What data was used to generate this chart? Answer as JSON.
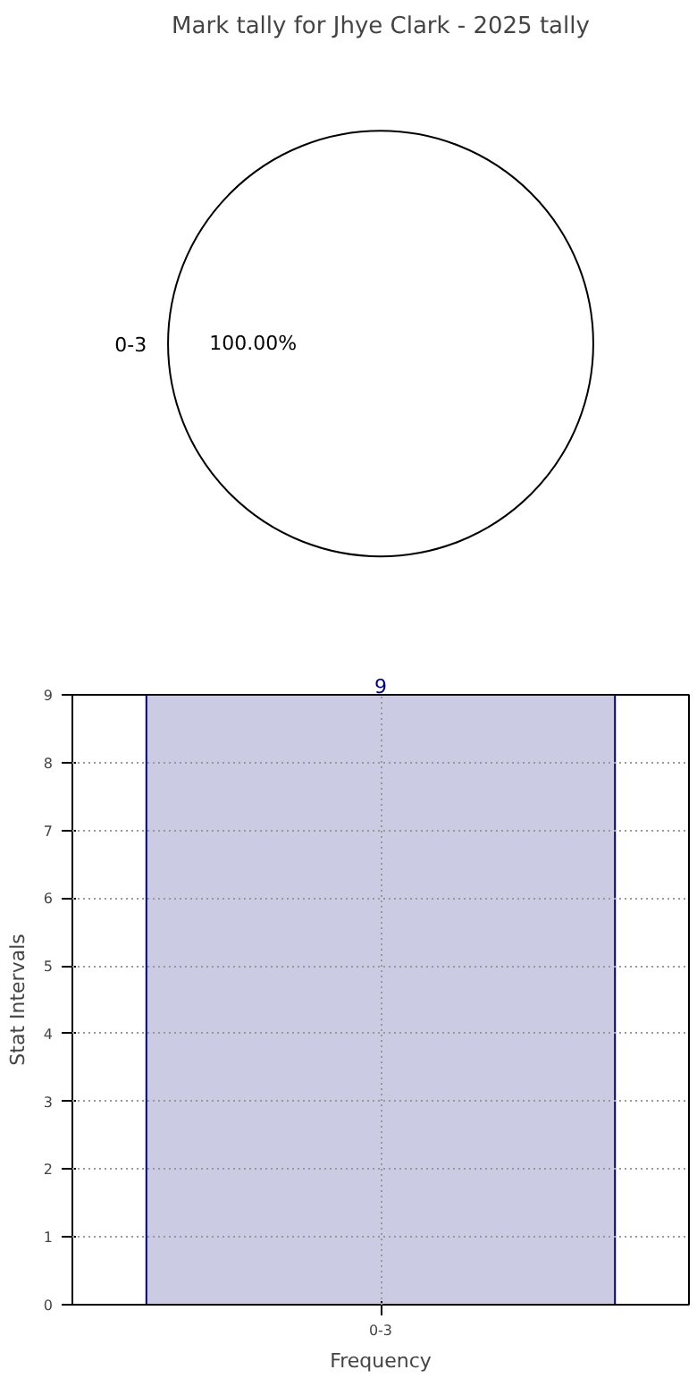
{
  "chart_data": [
    {
      "type": "pie",
      "title": "Mark tally for Jhye Clark - 2025 tally",
      "categories": [
        "0-3"
      ],
      "values": [
        100
      ],
      "colors": [
        "#ffffff"
      ],
      "value_labels": [
        "100.00%"
      ]
    },
    {
      "type": "bar",
      "categories": [
        "0-3"
      ],
      "values": [
        9
      ],
      "color": "#cbcce3",
      "xlabel": "Frequency",
      "ylabel": "Stat Intervals",
      "ylim": [
        0,
        9
      ],
      "yticks": [
        0,
        1,
        2,
        3,
        4,
        5,
        6,
        7,
        8,
        9
      ],
      "grid": true,
      "data_labels": true
    }
  ]
}
